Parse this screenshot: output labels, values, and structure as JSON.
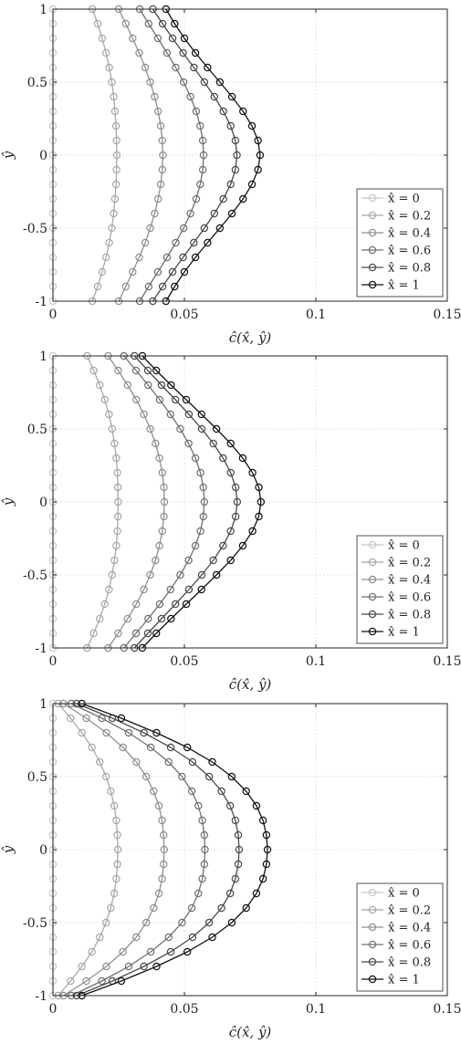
{
  "chart_data": [
    {
      "type": "line",
      "xlabel": "ĉ(x̂, ŷ)",
      "ylabel": "ŷ",
      "xlim": [
        0,
        0.15
      ],
      "ylim": [
        -1,
        1
      ],
      "xticks": [
        "0",
        "0.05",
        "0.1",
        "0.15"
      ],
      "yticks": [
        "1",
        "0.5",
        "0",
        "-0.5",
        "-1"
      ],
      "grid": true,
      "legend_position": "bottom-right",
      "series": [
        {
          "name": "x̂ = 0",
          "color": "#c8c8c8",
          "y": [
            1,
            0.9,
            0.8,
            0.7,
            0.6,
            0.5,
            0.4,
            0.3,
            0.2,
            0.1,
            0,
            -0.1,
            -0.2,
            -0.3,
            -0.4,
            -0.5,
            -0.6,
            -0.7,
            -0.8,
            -0.9,
            -1
          ],
          "x": [
            0,
            0,
            0,
            0,
            0,
            0,
            0,
            0,
            0,
            0,
            0,
            0,
            0,
            0,
            0,
            0,
            0,
            0,
            0,
            0,
            0
          ]
        },
        {
          "name": "x̂ = 0.2",
          "color": "#a8a8a8",
          "y": [
            1,
            0.9,
            0.8,
            0.7,
            0.6,
            0.5,
            0.4,
            0.3,
            0.2,
            0.1,
            0,
            -0.1,
            -0.2,
            -0.3,
            -0.4,
            -0.5,
            -0.6,
            -0.7,
            -0.8,
            -0.9,
            -1
          ],
          "x": [
            0.015,
            0.017,
            0.0187,
            0.0202,
            0.0214,
            0.0224,
            0.0231,
            0.0236,
            0.024,
            0.0242,
            0.0243,
            0.0242,
            0.024,
            0.0236,
            0.0231,
            0.0224,
            0.0214,
            0.0202,
            0.0187,
            0.017,
            0.015
          ]
        },
        {
          "name": "x̂ = 0.4",
          "color": "#8f8f8f",
          "y": [
            1,
            0.9,
            0.8,
            0.7,
            0.6,
            0.5,
            0.4,
            0.3,
            0.2,
            0.1,
            0,
            -0.1,
            -0.2,
            -0.3,
            -0.4,
            -0.5,
            -0.6,
            -0.7,
            -0.8,
            -0.9,
            -1
          ],
          "x": [
            0.025,
            0.0277,
            0.0303,
            0.0328,
            0.0351,
            0.037,
            0.0387,
            0.04,
            0.041,
            0.0416,
            0.0418,
            0.0416,
            0.041,
            0.04,
            0.0387,
            0.037,
            0.0351,
            0.0328,
            0.0303,
            0.0277,
            0.025
          ]
        },
        {
          "name": "x̂ = 0.6",
          "color": "#707070",
          "y": [
            1,
            0.9,
            0.8,
            0.7,
            0.6,
            0.5,
            0.4,
            0.3,
            0.2,
            0.1,
            0,
            -0.1,
            -0.2,
            -0.3,
            -0.4,
            -0.5,
            -0.6,
            -0.7,
            -0.8,
            -0.9,
            -1
          ],
          "x": [
            0.033,
            0.0364,
            0.0399,
            0.0434,
            0.0467,
            0.0497,
            0.0523,
            0.0545,
            0.056,
            0.057,
            0.0573,
            0.057,
            0.056,
            0.0545,
            0.0523,
            0.0497,
            0.0467,
            0.0434,
            0.0399,
            0.0364,
            0.033
          ]
        },
        {
          "name": "x̂ = 0.8",
          "color": "#4a4a4a",
          "y": [
            1,
            0.9,
            0.8,
            0.7,
            0.6,
            0.5,
            0.4,
            0.3,
            0.2,
            0.1,
            0,
            -0.1,
            -0.2,
            -0.3,
            -0.4,
            -0.5,
            -0.6,
            -0.7,
            -0.8,
            -0.9,
            -1
          ],
          "x": [
            0.038,
            0.0417,
            0.0455,
            0.0495,
            0.0536,
            0.0576,
            0.0614,
            0.0648,
            0.0676,
            0.0694,
            0.07,
            0.0694,
            0.0676,
            0.0648,
            0.0614,
            0.0576,
            0.0536,
            0.0495,
            0.0455,
            0.0417,
            0.038
          ]
        },
        {
          "name": "x̂ = 1",
          "color": "#111111",
          "y": [
            1,
            0.9,
            0.8,
            0.7,
            0.6,
            0.5,
            0.4,
            0.3,
            0.2,
            0.1,
            0,
            -0.1,
            -0.2,
            -0.3,
            -0.4,
            -0.5,
            -0.6,
            -0.7,
            -0.8,
            -0.9,
            -1
          ],
          "x": [
            0.043,
            0.0463,
            0.05,
            0.0542,
            0.0588,
            0.0635,
            0.0681,
            0.0723,
            0.0757,
            0.078,
            0.0788,
            0.078,
            0.0757,
            0.0723,
            0.0681,
            0.0635,
            0.0588,
            0.0542,
            0.05,
            0.0463,
            0.043
          ]
        }
      ]
    },
    {
      "type": "line",
      "xlabel": "ĉ(x̂, ŷ)",
      "ylabel": "ŷ",
      "xlim": [
        0,
        0.15
      ],
      "ylim": [
        -1,
        1
      ],
      "xticks": [
        "0",
        "0.05",
        "0.1",
        "0.15"
      ],
      "yticks": [
        "1",
        "0.5",
        "0",
        "-0.5",
        "-1"
      ],
      "grid": true,
      "legend_position": "bottom-right",
      "series": [
        {
          "name": "x̂ = 0",
          "color": "#c8c8c8",
          "y": [
            1,
            0.9,
            0.8,
            0.7,
            0.6,
            0.5,
            0.4,
            0.3,
            0.2,
            0.1,
            0,
            -0.1,
            -0.2,
            -0.3,
            -0.4,
            -0.5,
            -0.6,
            -0.7,
            -0.8,
            -0.9,
            -1
          ],
          "x": [
            0,
            0,
            0,
            0,
            0,
            0,
            0,
            0,
            0,
            0,
            0,
            0,
            0,
            0,
            0,
            0,
            0,
            0,
            0,
            0,
            0
          ]
        },
        {
          "name": "x̂ = 0.2",
          "color": "#a8a8a8",
          "y": [
            1,
            0.9,
            0.8,
            0.7,
            0.6,
            0.5,
            0.4,
            0.3,
            0.2,
            0.1,
            0,
            -0.1,
            -0.2,
            -0.3,
            -0.4,
            -0.5,
            -0.6,
            -0.7,
            -0.8,
            -0.9,
            -1
          ],
          "x": [
            0.013,
            0.0155,
            0.0178,
            0.0197,
            0.0213,
            0.0225,
            0.0234,
            0.0241,
            0.0245,
            0.0247,
            0.0248,
            0.0247,
            0.0245,
            0.0241,
            0.0234,
            0.0225,
            0.0213,
            0.0197,
            0.0178,
            0.0155,
            0.013
          ]
        },
        {
          "name": "x̂ = 0.4",
          "color": "#8f8f8f",
          "y": [
            1,
            0.9,
            0.8,
            0.7,
            0.6,
            0.5,
            0.4,
            0.3,
            0.2,
            0.1,
            0,
            -0.1,
            -0.2,
            -0.3,
            -0.4,
            -0.5,
            -0.6,
            -0.7,
            -0.8,
            -0.9,
            -1
          ],
          "x": [
            0.021,
            0.0248,
            0.0284,
            0.0317,
            0.0346,
            0.037,
            0.039,
            0.0405,
            0.0416,
            0.0422,
            0.0424,
            0.0422,
            0.0416,
            0.0405,
            0.039,
            0.037,
            0.0346,
            0.0317,
            0.0284,
            0.0248,
            0.021
          ]
        },
        {
          "name": "x̂ = 0.6",
          "color": "#707070",
          "y": [
            1,
            0.9,
            0.8,
            0.7,
            0.6,
            0.5,
            0.4,
            0.3,
            0.2,
            0.1,
            0,
            -0.1,
            -0.2,
            -0.3,
            -0.4,
            -0.5,
            -0.6,
            -0.7,
            -0.8,
            -0.9,
            -1
          ],
          "x": [
            0.027,
            0.0316,
            0.0362,
            0.0406,
            0.0447,
            0.0484,
            0.0516,
            0.0542,
            0.0561,
            0.0572,
            0.0576,
            0.0572,
            0.0561,
            0.0542,
            0.0516,
            0.0484,
            0.0447,
            0.0406,
            0.0362,
            0.0316,
            0.027
          ]
        },
        {
          "name": "x̂ = 0.8",
          "color": "#4a4a4a",
          "y": [
            1,
            0.9,
            0.8,
            0.7,
            0.6,
            0.5,
            0.4,
            0.3,
            0.2,
            0.1,
            0,
            -0.1,
            -0.2,
            -0.3,
            -0.4,
            -0.5,
            -0.6,
            -0.7,
            -0.8,
            -0.9,
            -1
          ],
          "x": [
            0.031,
            0.0361,
            0.0413,
            0.0466,
            0.0517,
            0.0566,
            0.061,
            0.0647,
            0.0676,
            0.0695,
            0.0701,
            0.0695,
            0.0676,
            0.0647,
            0.061,
            0.0566,
            0.0517,
            0.0466,
            0.0413,
            0.0361,
            0.031
          ]
        },
        {
          "name": "x̂ = 1",
          "color": "#111111",
          "y": [
            1,
            0.9,
            0.8,
            0.7,
            0.6,
            0.5,
            0.4,
            0.3,
            0.2,
            0.1,
            0,
            -0.1,
            -0.2,
            -0.3,
            -0.4,
            -0.5,
            -0.6,
            -0.7,
            -0.8,
            -0.9,
            -1
          ],
          "x": [
            0.034,
            0.0393,
            0.0449,
            0.0507,
            0.0565,
            0.0622,
            0.0676,
            0.0722,
            0.0759,
            0.0783,
            0.0791,
            0.0783,
            0.0759,
            0.0722,
            0.0676,
            0.0622,
            0.0565,
            0.0507,
            0.0449,
            0.0393,
            0.034
          ]
        }
      ]
    },
    {
      "type": "line",
      "xlabel": "ĉ(x̂, ŷ)",
      "ylabel": "ŷ",
      "xlim": [
        0,
        0.15
      ],
      "ylim": [
        -1,
        1
      ],
      "xticks": [
        "0",
        "0.05",
        "0.1",
        "0.15"
      ],
      "yticks": [
        "1",
        "0.5",
        "0",
        "-0.5",
        "-1"
      ],
      "grid": true,
      "legend_position": "bottom-right",
      "series": [
        {
          "name": "x̂ = 0",
          "color": "#c8c8c8",
          "y": [
            1,
            0.9,
            0.8,
            0.7,
            0.6,
            0.5,
            0.4,
            0.3,
            0.2,
            0.1,
            0,
            -0.1,
            -0.2,
            -0.3,
            -0.4,
            -0.5,
            -0.6,
            -0.7,
            -0.8,
            -0.9,
            -1
          ],
          "x": [
            0,
            0,
            0,
            0,
            0,
            0,
            0,
            0,
            0,
            0,
            0,
            0,
            0,
            0,
            0,
            0,
            0,
            0,
            0,
            0,
            0
          ]
        },
        {
          "name": "x̂ = 0.2",
          "color": "#a8a8a8",
          "y": [
            1,
            0.9,
            0.8,
            0.7,
            0.6,
            0.5,
            0.4,
            0.3,
            0.2,
            0.1,
            0,
            -0.1,
            -0.2,
            -0.3,
            -0.4,
            -0.5,
            -0.6,
            -0.7,
            -0.8,
            -0.9,
            -1
          ],
          "x": [
            0.002,
            0.0067,
            0.011,
            0.0148,
            0.0178,
            0.0202,
            0.022,
            0.0233,
            0.0241,
            0.0245,
            0.0247,
            0.0245,
            0.0241,
            0.0233,
            0.022,
            0.0202,
            0.0178,
            0.0148,
            0.011,
            0.0067,
            0.002
          ]
        },
        {
          "name": "x̂ = 0.4",
          "color": "#8f8f8f",
          "y": [
            1,
            0.9,
            0.8,
            0.7,
            0.6,
            0.5,
            0.4,
            0.3,
            0.2,
            0.1,
            0,
            -0.1,
            -0.2,
            -0.3,
            -0.4,
            -0.5,
            -0.6,
            -0.7,
            -0.8,
            -0.9,
            -1
          ],
          "x": [
            0.004,
            0.0127,
            0.0203,
            0.0266,
            0.0317,
            0.0355,
            0.0383,
            0.0403,
            0.0415,
            0.0421,
            0.0423,
            0.0421,
            0.0415,
            0.0403,
            0.0383,
            0.0355,
            0.0317,
            0.0266,
            0.0203,
            0.0127,
            0.004
          ]
        },
        {
          "name": "x̂ = 0.6",
          "color": "#707070",
          "y": [
            1,
            0.9,
            0.8,
            0.7,
            0.6,
            0.5,
            0.4,
            0.3,
            0.2,
            0.1,
            0,
            -0.1,
            -0.2,
            -0.3,
            -0.4,
            -0.5,
            -0.6,
            -0.7,
            -0.8,
            -0.9,
            -1
          ],
          "x": [
            0.007,
            0.0186,
            0.0288,
            0.0372,
            0.044,
            0.0491,
            0.0528,
            0.0553,
            0.0568,
            0.0576,
            0.0578,
            0.0576,
            0.0568,
            0.0553,
            0.0528,
            0.0491,
            0.044,
            0.0372,
            0.0288,
            0.0186,
            0.007
          ]
        },
        {
          "name": "x̂ = 0.8",
          "color": "#4a4a4a",
          "y": [
            1,
            0.9,
            0.8,
            0.7,
            0.6,
            0.5,
            0.4,
            0.3,
            0.2,
            0.1,
            0,
            -0.1,
            -0.2,
            -0.3,
            -0.4,
            -0.5,
            -0.6,
            -0.7,
            -0.8,
            -0.9,
            -1
          ],
          "x": [
            0.009,
            0.0226,
            0.0346,
            0.0448,
            0.0531,
            0.0594,
            0.0641,
            0.0674,
            0.0694,
            0.0705,
            0.0708,
            0.0705,
            0.0694,
            0.0674,
            0.0641,
            0.0594,
            0.0531,
            0.0448,
            0.0346,
            0.0226,
            0.009
          ]
        },
        {
          "name": "x̂ = 1",
          "color": "#111111",
          "y": [
            1,
            0.9,
            0.8,
            0.7,
            0.6,
            0.5,
            0.4,
            0.3,
            0.2,
            0.1,
            0,
            -0.1,
            -0.2,
            -0.3,
            -0.4,
            -0.5,
            -0.6,
            -0.7,
            -0.8,
            -0.9,
            -1
          ],
          "x": [
            0.011,
            0.026,
            0.0394,
            0.0511,
            0.0606,
            0.068,
            0.0735,
            0.0774,
            0.0799,
            0.0812,
            0.0816,
            0.0812,
            0.0799,
            0.0774,
            0.0735,
            0.068,
            0.0606,
            0.0511,
            0.0394,
            0.026,
            0.011
          ]
        }
      ]
    }
  ]
}
